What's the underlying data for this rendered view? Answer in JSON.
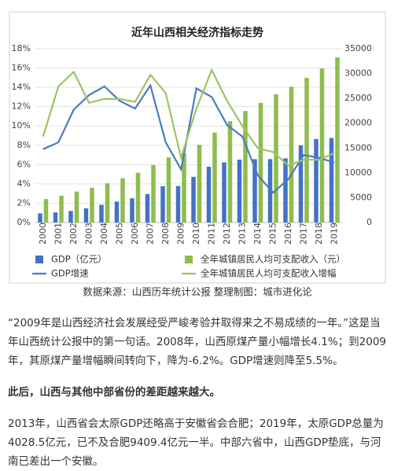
{
  "chart_data": {
    "type": "combo",
    "title": "近年山西相关经济指标走势",
    "categories": [
      "2000",
      "2001",
      "2002",
      "2003",
      "2004",
      "2005",
      "2006",
      "2007",
      "2008",
      "2009",
      "2010",
      "2011",
      "2012",
      "2013",
      "2014",
      "2015",
      "2016",
      "2017",
      "2018",
      "2019"
    ],
    "series": [
      {
        "name": "GDP（亿元）",
        "type": "bar",
        "axis": "y2",
        "color": "#4472c4",
        "values": [
          1845,
          2030,
          2325,
          2855,
          3571,
          4230,
          4879,
          5733,
          7315,
          7358,
          9200,
          11238,
          12113,
          12665,
          12761,
          12766,
          12928,
          15528,
          16818,
          17026
        ]
      },
      {
        "name": "全年城镇居民人均可支配收入（元）",
        "type": "bar",
        "axis": "y2",
        "color": "#8fbc4f",
        "values": [
          4724,
          5391,
          6234,
          7005,
          7903,
          8913,
          10028,
          11565,
          13119,
          13997,
          15648,
          18124,
          20412,
          22456,
          24069,
          25828,
          27352,
          29132,
          31035,
          33262
        ]
      },
      {
        "name": "GDP增速",
        "type": "line",
        "color": "#4a7cc0",
        "values": [
          7.6,
          8.3,
          11.7,
          13.2,
          14.1,
          12.6,
          11.8,
          14.2,
          8.3,
          5.5,
          13.9,
          13.0,
          10.1,
          8.9,
          4.9,
          3.1,
          4.5,
          7.0,
          6.7,
          6.2
        ]
      },
      {
        "name": "全年城镇居民人均可支配收入增幅",
        "type": "line",
        "color": "#9cc463",
        "values": [
          8.9,
          14.1,
          15.6,
          12.4,
          12.8,
          12.8,
          12.5,
          15.3,
          13.4,
          6.7,
          11.8,
          15.8,
          12.6,
          10.0,
          7.7,
          7.3,
          5.9,
          6.5,
          6.5,
          7.2
        ]
      }
    ],
    "ylim": [
      0,
      18
    ],
    "yticks": [
      {
        "value": 0,
        "label": "0%"
      },
      {
        "value": 2,
        "label": "2%"
      },
      {
        "value": 4,
        "label": "4%"
      },
      {
        "value": 6,
        "label": "6%"
      },
      {
        "value": 8,
        "label": "8%"
      },
      {
        "value": 10,
        "label": "10%"
      },
      {
        "value": 12,
        "label": "12%"
      },
      {
        "value": 14,
        "label": "14%"
      },
      {
        "value": 16,
        "label": "16%"
      },
      {
        "value": 18,
        "label": "18%"
      }
    ],
    "y2lim": [
      0,
      35000
    ],
    "y2ticks": [
      0,
      5000,
      10000,
      15000,
      20000,
      25000,
      30000,
      35000
    ],
    "legend": "bottom"
  },
  "source": "数据来源：山西历年统计公报 整理制图：城市进化论",
  "paragraphs": [
    "“2009年是山西经济社会发展经受严峻考验并取得来之不易成绩的一年。”这是当年山西统计公报中的第一句话。2008年，山西原煤产量小幅增长4.1%；到2009年，其原煤产量增幅瞬间转向下，降为-6.2%。GDP增速则降至5.5%。",
    "此后，山西与其他中部省份的差距越来越大。",
    "2013年，山西省会太原GDP还略高于安徽省会合肥；2019年，太原GDP总量为4028.5亿元，已不及合肥9409.4亿元一半。中部六省中，山西GDP垫底，与河南已差出一个安徽。"
  ]
}
